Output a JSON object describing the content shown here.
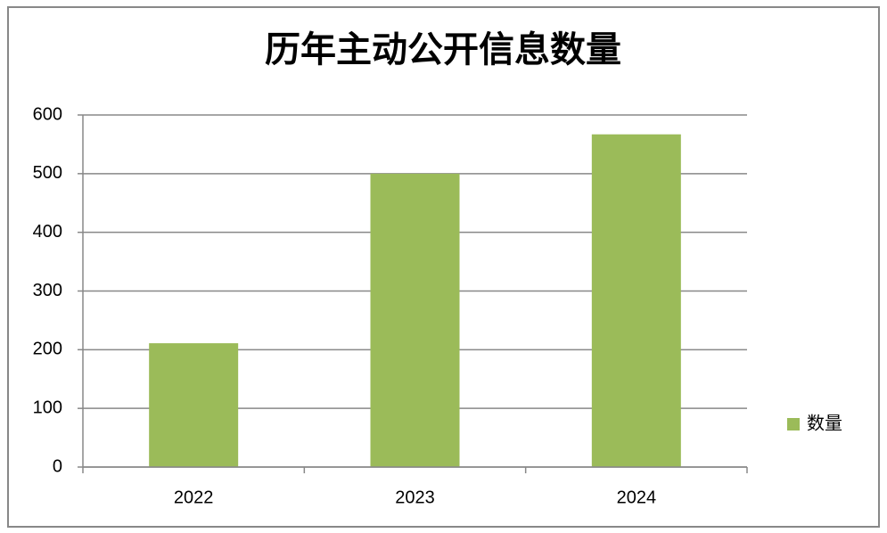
{
  "chart_data": {
    "type": "bar",
    "title": "历年主动公开信息数量",
    "categories": [
      "2022",
      "2023",
      "2024"
    ],
    "series": [
      {
        "name": "数量",
        "color": "#9bbb59",
        "values": [
          211,
          500,
          567
        ]
      }
    ],
    "ylim": [
      0,
      600
    ],
    "yticks": [
      0,
      100,
      200,
      300,
      400,
      500,
      600
    ],
    "grid": true,
    "legend": "right"
  }
}
